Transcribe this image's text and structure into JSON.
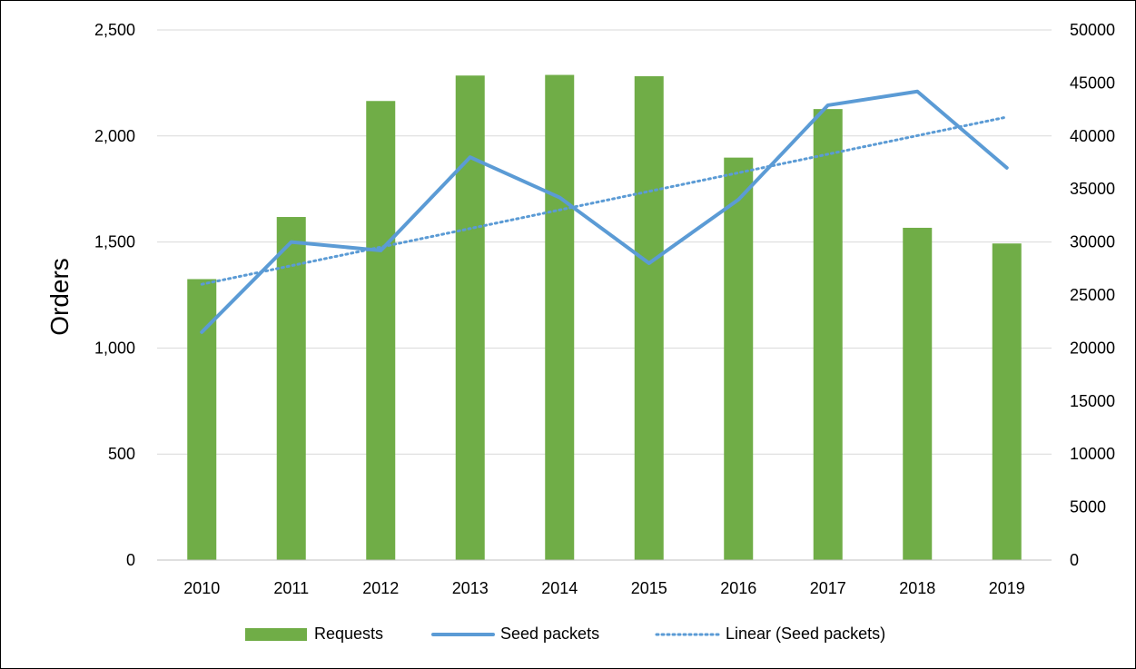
{
  "chart_data": {
    "type": "bar",
    "categories": [
      "2010",
      "2011",
      "2012",
      "2013",
      "2014",
      "2015",
      "2016",
      "2017",
      "2018",
      "2019"
    ],
    "series": [
      {
        "name": "Requests",
        "type": "bar",
        "axis": "left",
        "color": "#70ad47",
        "values": [
          1325,
          1618,
          2165,
          2285,
          2288,
          2282,
          1898,
          2127,
          1567,
          1493
        ]
      },
      {
        "name": "Seed packets",
        "type": "line",
        "axis": "right",
        "color": "#5b9bd5",
        "values": [
          21500,
          30000,
          29200,
          38000,
          34200,
          28000,
          34000,
          42900,
          44200,
          37000
        ]
      },
      {
        "name": "Linear (Seed packets)",
        "type": "line",
        "style": "dotted",
        "axis": "right",
        "color": "#5b9bd5",
        "trendline_of": "Seed packets"
      }
    ],
    "ylabel": "Orders",
    "ylim": [
      0,
      2500
    ],
    "y_ticks": [
      "0",
      "500",
      "1,000",
      "1,500",
      "2,000",
      "2,500"
    ],
    "y2lim": [
      0,
      50000
    ],
    "y2_ticks": [
      "0",
      "5000",
      "10000",
      "15000",
      "20000",
      "25000",
      "30000",
      "35000",
      "40000",
      "45000",
      "50000"
    ],
    "grid": true,
    "legend_position": "bottom"
  }
}
